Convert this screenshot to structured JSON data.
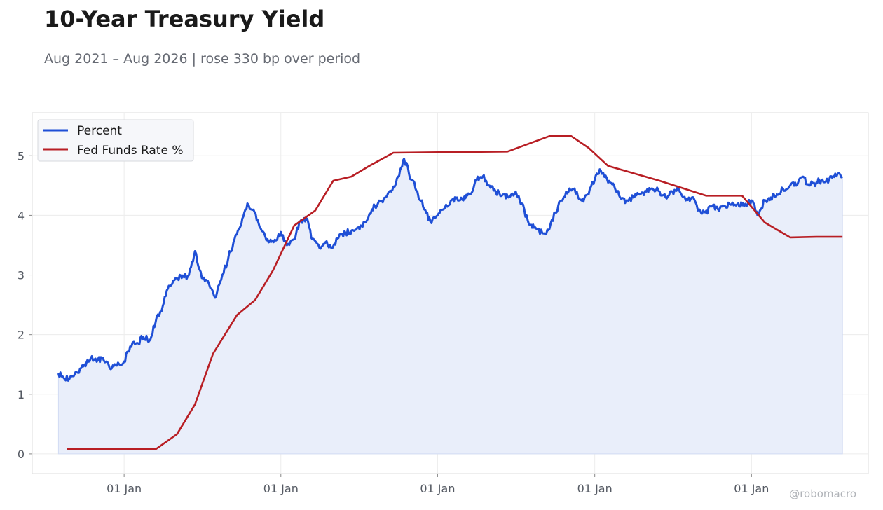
{
  "header": {
    "title": "10-Year Treasury Yield",
    "subtitle": "Aug 2021 – Aug 2026 | rose 330 bp over period"
  },
  "credit": "@robomacro",
  "colors": {
    "yield_line": "#1f4fd6",
    "yield_fill": "#e9eefa",
    "fed_line": "#b81e24",
    "grid": "#ececec",
    "frame": "#dddddd"
  },
  "chart_data": {
    "type": "line",
    "title": "10-Year Treasury Yield",
    "subtitle": "Aug 2021 – Aug 2026 | rose 330 bp over period",
    "xlabel": "",
    "ylabel": "",
    "xlim": [
      "2021-06-01",
      "2026-09-30"
    ],
    "ylim": [
      -0.33,
      5.72
    ],
    "grid": true,
    "legend_position": "top-left",
    "x_ticks": [
      {
        "date": "2022-01-01",
        "label": "01 Jan"
      },
      {
        "date": "2023-01-01",
        "label": "01 Jan"
      },
      {
        "date": "2024-01-01",
        "label": "01 Jan"
      },
      {
        "date": "2025-01-01",
        "label": "01 Jan"
      },
      {
        "date": "2026-01-01",
        "label": "01 Jan"
      }
    ],
    "y_ticks": [
      0,
      1,
      2,
      3,
      4,
      5
    ],
    "series": [
      {
        "name": "Percent",
        "color": "#1f4fd6",
        "fill_to_zero": true,
        "x": [
          "2021-08-01",
          "2021-08-15",
          "2021-09-01",
          "2021-09-15",
          "2021-10-01",
          "2021-10-15",
          "2021-11-01",
          "2021-11-15",
          "2021-12-01",
          "2021-12-15",
          "2022-01-01",
          "2022-01-15",
          "2022-02-01",
          "2022-02-15",
          "2022-03-01",
          "2022-03-15",
          "2022-04-01",
          "2022-04-15",
          "2022-05-01",
          "2022-05-15",
          "2022-06-01",
          "2022-06-15",
          "2022-07-01",
          "2022-07-15",
          "2022-08-01",
          "2022-08-15",
          "2022-09-01",
          "2022-09-15",
          "2022-10-01",
          "2022-10-15",
          "2022-11-01",
          "2022-11-15",
          "2022-12-01",
          "2022-12-15",
          "2023-01-01",
          "2023-01-15",
          "2023-02-01",
          "2023-02-15",
          "2023-03-01",
          "2023-03-15",
          "2023-04-01",
          "2023-04-15",
          "2023-05-01",
          "2023-05-15",
          "2023-06-01",
          "2023-06-15",
          "2023-07-01",
          "2023-07-15",
          "2023-08-01",
          "2023-08-15",
          "2023-09-01",
          "2023-09-15",
          "2023-10-01",
          "2023-10-15",
          "2023-11-01",
          "2023-11-15",
          "2023-12-01",
          "2023-12-15",
          "2024-01-01",
          "2024-01-15",
          "2024-02-01",
          "2024-02-15",
          "2024-03-01",
          "2024-03-15",
          "2024-04-01",
          "2024-04-15",
          "2024-05-01",
          "2024-05-15",
          "2024-06-01",
          "2024-06-15",
          "2024-07-01",
          "2024-07-15",
          "2024-08-01",
          "2024-08-15",
          "2024-09-01",
          "2024-09-15",
          "2024-10-01",
          "2024-10-15",
          "2024-11-01",
          "2024-11-15",
          "2024-12-01",
          "2024-12-15",
          "2025-01-01",
          "2025-01-15",
          "2025-02-01",
          "2025-02-15",
          "2025-03-01",
          "2025-03-15",
          "2025-04-01",
          "2025-04-15",
          "2025-05-01",
          "2025-05-15",
          "2025-06-01",
          "2025-06-15",
          "2025-07-01",
          "2025-07-15",
          "2025-08-01",
          "2025-08-15",
          "2025-09-01",
          "2025-09-15",
          "2025-10-01",
          "2025-10-15",
          "2025-11-01",
          "2025-11-15",
          "2025-12-01",
          "2025-12-15",
          "2026-01-01",
          "2026-01-15",
          "2026-02-01",
          "2026-02-15",
          "2026-03-01",
          "2026-03-15",
          "2026-04-01",
          "2026-04-15",
          "2026-05-01",
          "2026-05-15",
          "2026-06-01",
          "2026-06-15",
          "2026-07-01",
          "2026-07-15",
          "2026-08-01"
        ],
        "values": [
          1.35,
          1.26,
          1.3,
          1.36,
          1.5,
          1.6,
          1.58,
          1.56,
          1.42,
          1.48,
          1.55,
          1.8,
          1.86,
          1.96,
          1.9,
          2.2,
          2.48,
          2.82,
          2.95,
          2.95,
          3.0,
          3.4,
          2.95,
          2.9,
          2.62,
          2.92,
          3.3,
          3.6,
          3.85,
          4.2,
          4.05,
          3.78,
          3.6,
          3.55,
          3.72,
          3.5,
          3.6,
          3.9,
          3.95,
          3.6,
          3.45,
          3.55,
          3.45,
          3.62,
          3.7,
          3.75,
          3.8,
          3.88,
          4.1,
          4.2,
          4.3,
          4.4,
          4.65,
          4.95,
          4.6,
          4.4,
          4.1,
          3.9,
          4.0,
          4.1,
          4.25,
          4.3,
          4.25,
          4.35,
          4.6,
          4.65,
          4.5,
          4.4,
          4.35,
          4.3,
          4.4,
          4.2,
          3.85,
          3.8,
          3.7,
          3.75,
          4.05,
          4.25,
          4.4,
          4.45,
          4.25,
          4.35,
          4.6,
          4.75,
          4.55,
          4.5,
          4.3,
          4.25,
          4.3,
          4.35,
          4.4,
          4.45,
          4.4,
          4.3,
          4.4,
          4.45,
          4.25,
          4.3,
          4.1,
          4.05,
          4.15,
          4.1,
          4.15,
          4.18,
          4.2,
          4.15,
          4.25,
          4.0,
          4.25,
          4.3,
          4.35,
          4.45,
          4.5,
          4.5,
          4.65,
          4.5,
          4.55,
          4.6,
          4.6,
          4.7,
          4.65
        ]
      },
      {
        "name": "Fed Funds Rate %",
        "color": "#b81e24",
        "fill_to_zero": false,
        "x": [
          "2021-08-20",
          "2022-03-16",
          "2022-05-04",
          "2022-06-15",
          "2022-07-27",
          "2022-09-21",
          "2022-11-02",
          "2022-12-14",
          "2023-02-01",
          "2023-03-22",
          "2023-05-03",
          "2023-06-14",
          "2023-07-26",
          "2023-09-20",
          "2024-06-12",
          "2024-09-18",
          "2024-11-07",
          "2024-12-18",
          "2025-02-01",
          "2025-06-01",
          "2025-09-17",
          "2025-10-29",
          "2025-12-10",
          "2026-02-01",
          "2026-04-01",
          "2026-06-01",
          "2026-08-01"
        ],
        "values": [
          0.08,
          0.08,
          0.33,
          0.83,
          1.68,
          2.33,
          2.58,
          3.08,
          3.83,
          4.08,
          4.58,
          4.65,
          4.83,
          5.05,
          5.07,
          5.33,
          5.33,
          5.13,
          4.83,
          4.58,
          4.33,
          4.33,
          4.33,
          3.88,
          3.63,
          3.64,
          3.64
        ]
      }
    ]
  }
}
